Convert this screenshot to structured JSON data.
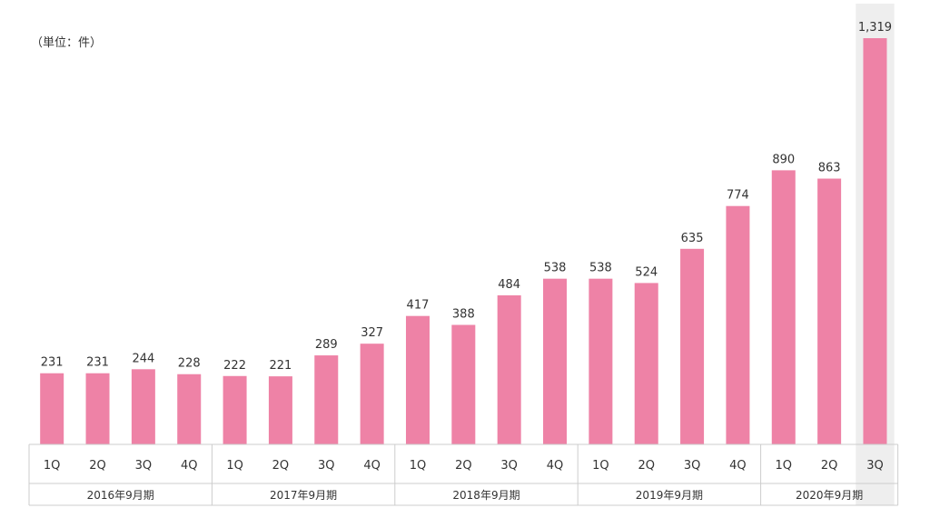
{
  "unit_label": "（単位：件）",
  "colors": {
    "bar": "#ee82a6",
    "highlight_bg": "#eeeeee",
    "axis": "#cccccc",
    "text": "#333333"
  },
  "chart_data": {
    "type": "bar",
    "highlighted_index": 18,
    "groups": [
      {
        "label": "2016年9月期",
        "categories": [
          "1Q",
          "2Q",
          "3Q",
          "4Q"
        ],
        "values": [
          231,
          231,
          244,
          228
        ]
      },
      {
        "label": "2017年9月期",
        "categories": [
          "1Q",
          "2Q",
          "3Q",
          "4Q"
        ],
        "values": [
          222,
          221,
          289,
          327
        ]
      },
      {
        "label": "2018年9月期",
        "categories": [
          "1Q",
          "2Q",
          "3Q",
          "4Q"
        ],
        "values": [
          417,
          388,
          484,
          538
        ]
      },
      {
        "label": "2019年9月期",
        "categories": [
          "1Q",
          "2Q",
          "3Q",
          "4Q"
        ],
        "values": [
          538,
          524,
          635,
          774
        ]
      },
      {
        "label": "2020年9月期",
        "categories": [
          "1Q",
          "2Q",
          "3Q"
        ],
        "values": [
          890,
          863,
          1319
        ]
      }
    ],
    "value_labels": [
      "231",
      "231",
      "244",
      "228",
      "222",
      "221",
      "289",
      "327",
      "417",
      "388",
      "484",
      "538",
      "538",
      "524",
      "635",
      "774",
      "890",
      "863",
      "1,319"
    ],
    "ylim": [
      0,
      1319
    ]
  }
}
